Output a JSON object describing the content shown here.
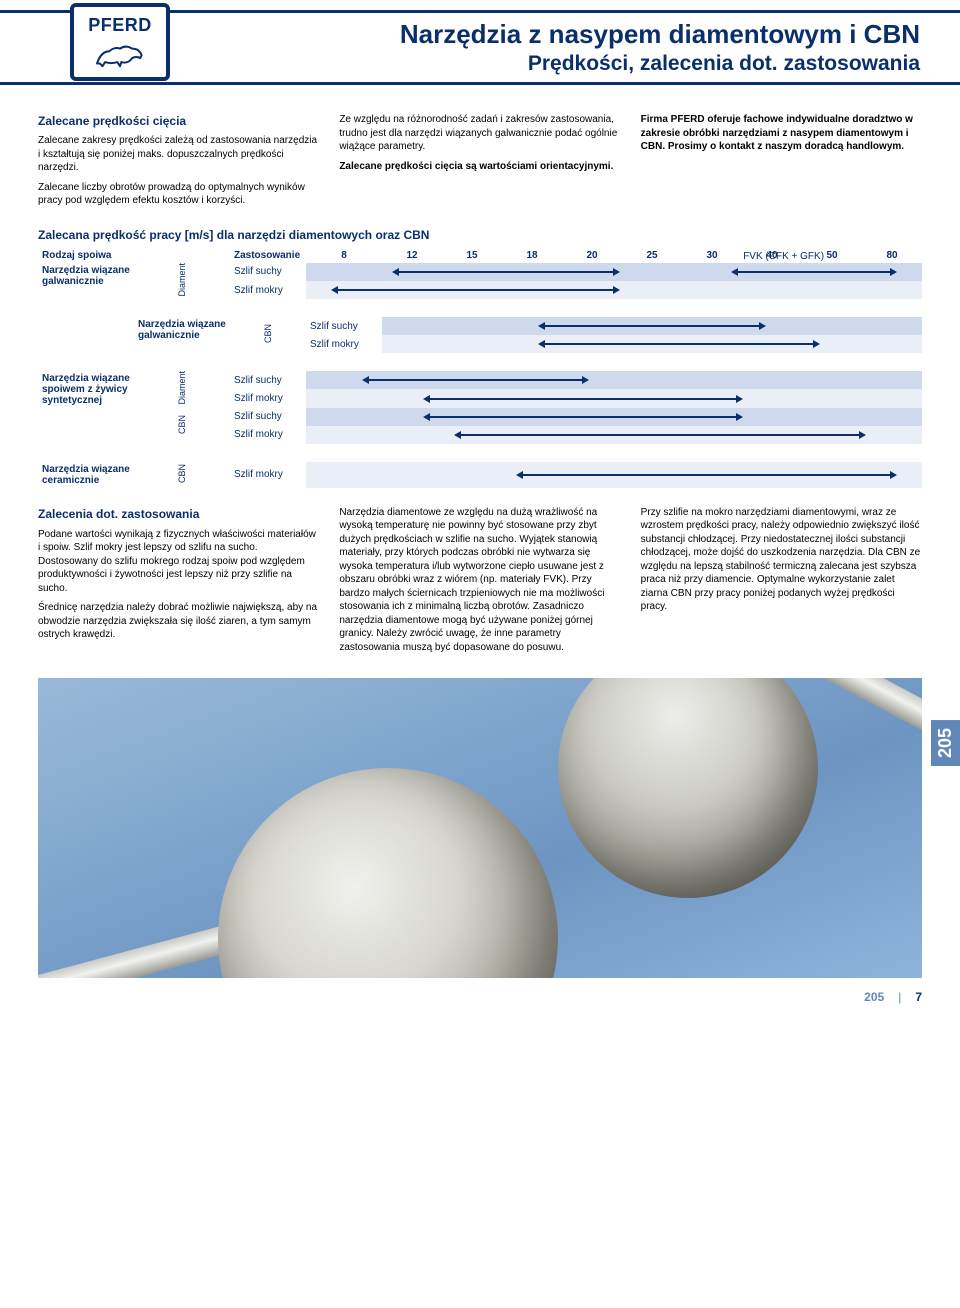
{
  "brand": "PFERD",
  "title": "Narzędzia z nasypem diamentowym i CBN",
  "subtitle": "Prędkości, zalecenia dot. zastosowania",
  "side_tab": "205",
  "footer": {
    "cat": "205",
    "sep": "|",
    "page": "7"
  },
  "intro": {
    "col1": {
      "heading": "Zalecane prędkości cięcia",
      "p1": "Zalecane zakresy prędkości zależą od zastosowania narzędzia i kształtują się poniżej maks. dopuszczalnych prędkości narzędzi.",
      "p2": "Zalecane liczby obrotów prowadzą do optymalnych wyników pracy pod względem efektu kosztów i korzyści."
    },
    "col2": {
      "p1": "Ze względu na różnorodność zadań i zakresów zastosowania, trudno jest dla narzędzi wiązanych galwanicznie podać ogólnie wiążące parametry.",
      "p2": "Zalecane prędkości cięcia są wartościami orientacyjnymi."
    },
    "col3": {
      "p1": "Firma PFERD oferuje fachowe indywidualne doradztwo w zakresie obróbki narzędziami z nasypem diamentowym i CBN. Prosimy o kontakt z naszym doradcą handlowym."
    }
  },
  "chart": {
    "title": "Zalecana prędkość pracy [m/s] dla narzędzi diamentowych oraz CBN",
    "header": {
      "bond": "Rodzaj spoiwa",
      "use": "Zastosowanie",
      "values": [
        "8",
        "12",
        "15",
        "18",
        "20",
        "25",
        "30",
        "40",
        "50",
        "80"
      ]
    },
    "fvk_label": "FVK (CFK + GFK)",
    "bonds": {
      "gal": "Narzędzia wiązane galwanicznie",
      "resin": "Narzędzia wiązane spoiwem z żywicy syntetycznej",
      "ceram": "Narzędzia wiązane ceramicznie"
    },
    "materials": {
      "diament": "Diament",
      "cbn": "CBN"
    },
    "uses": {
      "dry": "Szlif suchy",
      "wet": "Szlif mokry"
    },
    "num_value_cols": 10,
    "rows": [
      {
        "bond": "gal",
        "mat": "diament",
        "use": "dry",
        "alt": false,
        "range": [
          1.5,
          5.0
        ],
        "fvk_range": [
          7.0,
          9.5
        ],
        "show_fvk_label": true
      },
      {
        "bond": "gal",
        "mat": "diament",
        "use": "wet",
        "alt": true,
        "range": [
          0.5,
          5.0
        ]
      },
      {
        "divider": true
      },
      {
        "bond": "gal",
        "mat": "cbn",
        "use": "dry",
        "alt": false,
        "range": [
          3.0,
          7.0
        ]
      },
      {
        "bond": "gal",
        "mat": "cbn",
        "use": "wet",
        "alt": true,
        "range": [
          3.0,
          8.0
        ]
      },
      {
        "divider": true
      },
      {
        "bond": "resin",
        "mat": "diament",
        "use": "dry",
        "alt": false,
        "range": [
          1.0,
          4.5
        ]
      },
      {
        "bond": "resin",
        "mat": "diament",
        "use": "wet",
        "alt": true,
        "range": [
          2.0,
          7.0
        ]
      },
      {
        "bond": "resin",
        "mat": "cbn",
        "use": "dry",
        "alt": false,
        "range": [
          2.0,
          7.0
        ]
      },
      {
        "bond": "resin",
        "mat": "cbn",
        "use": "wet",
        "alt": true,
        "range": [
          2.5,
          9.0
        ]
      },
      {
        "divider": true
      },
      {
        "bond": "ceram",
        "mat": "cbn",
        "use": "wet",
        "alt": true,
        "range": [
          3.5,
          9.5
        ]
      }
    ]
  },
  "recommend": {
    "heading": "Zalecenia dot. zastosowania",
    "col1": {
      "p1": "Podane wartości wynikają z fizycznych właściwości materiałów i spoiw. Szlif mokry jest lepszy od szlifu na sucho. Dostosowany do szlifu mokrego rodzaj spoiw pod względem produktywności i żywotności jest lepszy niż przy szlifie na sucho.",
      "p2": "Średnicę narzędzia należy dobrać możliwie największą, aby na obwodzie narzędzia zwiększała się ilość ziaren, a tym samym ostrych krawędzi."
    },
    "col2": {
      "p1": "Narzędzia diamentowe ze względu na dużą wrażliwość na wysoką temperaturę nie powinny być stosowane przy zbyt dużych prędkościach w szlifie na sucho. Wyjątek stanowią materiały, przy których podczas obróbki nie wytwarza się wysoka temperatura i/lub wytworzone ciepło usuwane jest z obszaru obróbki wraz z wiórem (np. materiały FVK). Przy bardzo małych ściernicach trzpieniowych nie ma możliwości stosowania ich z minimalną liczbą obrotów. Zasadniczo narzędzia diamentowe mogą być używane poniżej górnej granicy. Należy zwrócić uwagę, że inne parametry zastosowania muszą być dopasowane do posuwu."
    },
    "col3": {
      "p1": "Przy szlifie na mokro narzędziami diamentowymi, wraz ze wzrostem prędkości pracy, należy odpowiednio zwiększyć ilość substancji chłodzącej. Przy niedostatecznej ilości substancji chłodzącej, może dojść do uszkodzenia narzędzia. Dla CBN ze względu na lepszą stabilność termiczną zalecana jest szybsza praca niż przy diamencie. Optymalne wykorzystanie zalet ziarna CBN przy pracy poniżej podanych wyżej prędkości pracy."
    }
  },
  "colors": {
    "brand_blue": "#0a2f6b",
    "band_light": "#e9eef7",
    "band_dark": "#ced9ed",
    "side_tab": "#6187b9"
  }
}
